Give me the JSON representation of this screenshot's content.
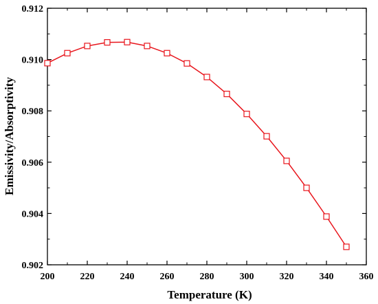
{
  "chart_data": {
    "type": "line",
    "title": "",
    "xlabel": "Temperature (K)",
    "ylabel": "Emissivity/Absorptivity",
    "xlim": [
      200,
      360
    ],
    "ylim": [
      0.902,
      0.912
    ],
    "xticks": [
      200,
      220,
      240,
      260,
      280,
      300,
      320,
      340,
      360
    ],
    "yticks": [
      0.902,
      0.904,
      0.906,
      0.908,
      0.91,
      0.912
    ],
    "x_tick_labels": [
      "200",
      "220",
      "240",
      "260",
      "280",
      "300",
      "320",
      "340",
      "360"
    ],
    "y_tick_labels": [
      "0.902",
      "0.904",
      "0.906",
      "0.908",
      "0.910",
      "0.912"
    ],
    "grid": false,
    "legend": "none",
    "series": [
      {
        "color": "#e8141b",
        "marker": "open-square",
        "x": [
          200,
          210,
          220,
          230,
          240,
          250,
          260,
          270,
          280,
          290,
          300,
          310,
          320,
          330,
          340,
          350
        ],
        "y": [
          0.90986,
          0.91025,
          0.91053,
          0.91067,
          0.91068,
          0.91053,
          0.91025,
          0.90985,
          0.90932,
          0.90866,
          0.90788,
          0.90701,
          0.90605,
          0.905,
          0.90388,
          0.9027
        ]
      }
    ]
  }
}
